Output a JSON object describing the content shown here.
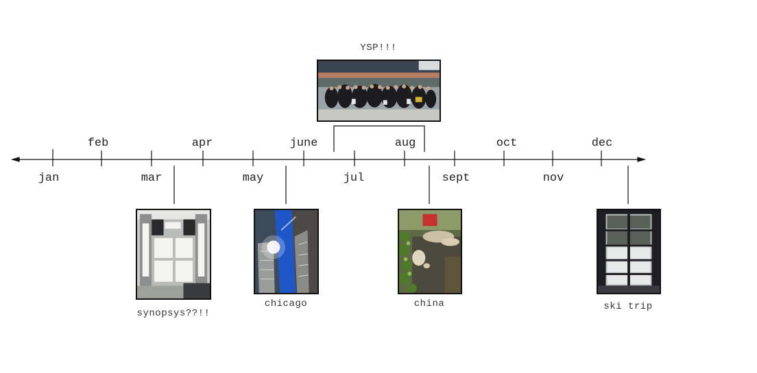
{
  "timeline": {
    "months_above": [
      "feb",
      "apr",
      "june",
      "aug",
      "oct",
      "dec"
    ],
    "months_below": [
      "jan",
      "mar",
      "may",
      "jul",
      "sept",
      "nov"
    ]
  },
  "events": [
    {
      "caption": "YSP!!!",
      "month": "jul",
      "image": "group-photo"
    },
    {
      "caption": "synopsys??!!",
      "month": "mar",
      "image": "poster-board-photo"
    },
    {
      "caption": "chicago",
      "month": "may",
      "image": "skyscraper-photo"
    },
    {
      "caption": "china",
      "month": "aug",
      "image": "garden-pond-photo"
    },
    {
      "caption": "ski trip",
      "month": "dec",
      "image": "snowy-window-photo"
    }
  ]
}
